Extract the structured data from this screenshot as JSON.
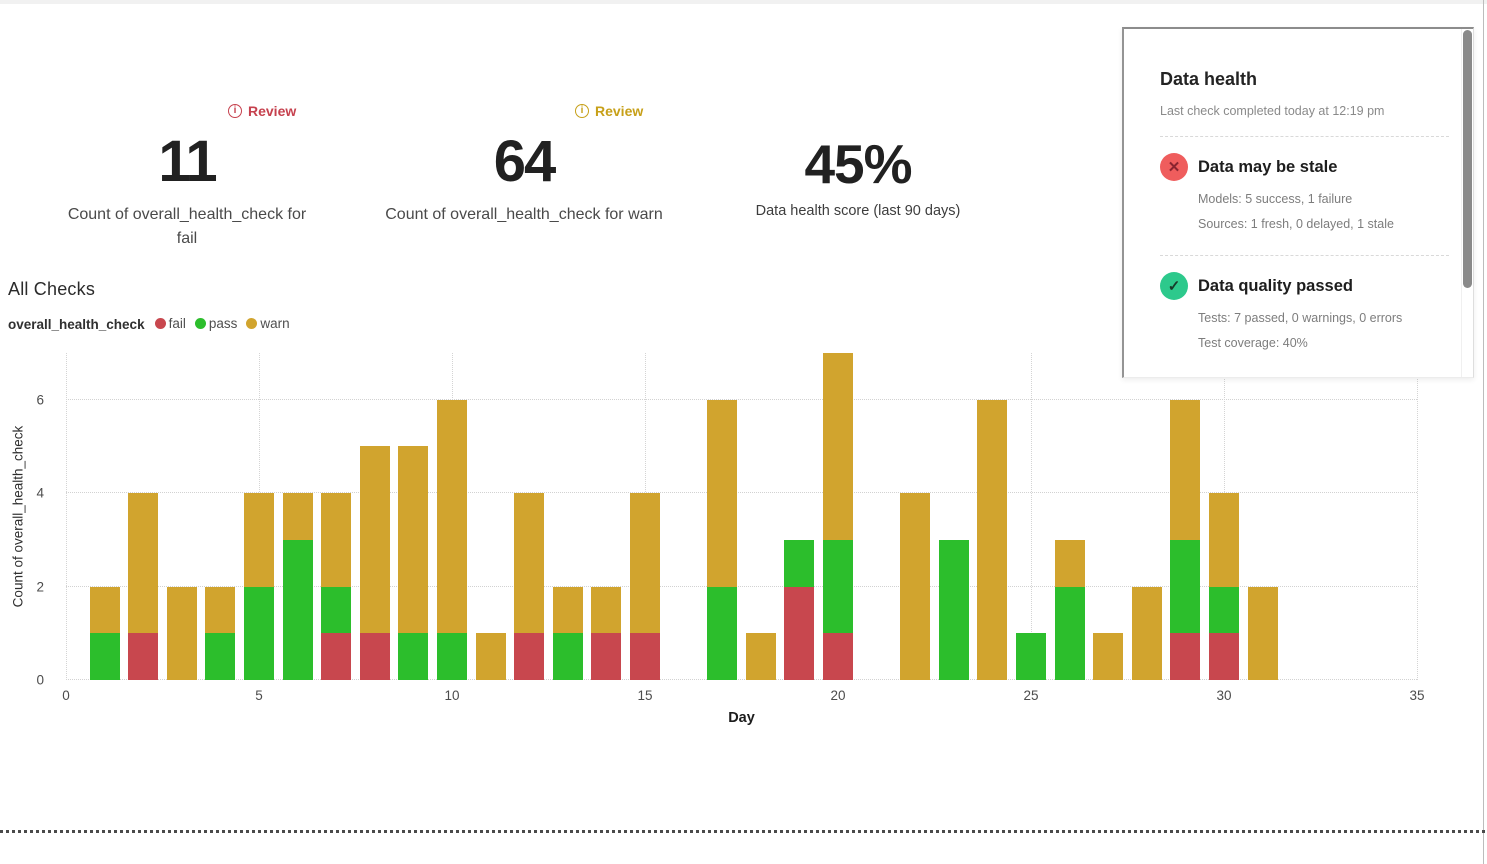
{
  "metrics": {
    "fail": {
      "badge": "Review",
      "badge_color": "#c6414e",
      "value": "11",
      "label": "Count of overall_health_check for fail"
    },
    "warn": {
      "badge": "Review",
      "badge_color": "#c7a019",
      "value": "64",
      "label": "Count of overall_health_check for warn"
    },
    "score": {
      "value": "45%",
      "label": "Data health score (last 90 days)"
    }
  },
  "health_panel": {
    "title": "Data health",
    "subtitle": "Last check completed today at 12:19 pm",
    "sections": [
      {
        "status": "fail",
        "icon": "x-circle-icon",
        "icon_color": "#ef5d5d",
        "glyph": "✕",
        "glyph_color": "#8a2430",
        "title": "Data may be stale",
        "details": [
          "Models: 5 success, 1 failure",
          "Sources: 1 fresh, 0 delayed, 1 stale"
        ]
      },
      {
        "status": "pass",
        "icon": "check-circle-icon",
        "icon_color": "#2dc98c",
        "glyph": "✓",
        "glyph_color": "#173b2a",
        "title": "Data quality passed",
        "details": [
          "Tests: 7 passed, 0 warnings, 0 errors",
          "Test coverage: 40%"
        ]
      }
    ]
  },
  "chart_data": {
    "type": "stacked_bar",
    "title": "All Checks",
    "legend_title": "overall_health_check",
    "xlabel": "Day",
    "ylabel": "Count of overall_health_check",
    "xlim": [
      0,
      35
    ],
    "ylim": [
      0,
      7
    ],
    "xticks": [
      0,
      5,
      10,
      15,
      20,
      25,
      30,
      35
    ],
    "yticks": [
      0,
      2,
      4,
      6
    ],
    "grid": "dotted",
    "legend_position": "top-left",
    "series_order": [
      "fail",
      "pass",
      "warn"
    ],
    "series_colors": {
      "fail": "#c8474e",
      "pass": "#2cbe2c",
      "warn": "#d1a42e"
    },
    "bars": [
      {
        "day": 1,
        "fail": 0,
        "pass": 1,
        "warn": 1
      },
      {
        "day": 2,
        "fail": 1,
        "pass": 0,
        "warn": 3
      },
      {
        "day": 3,
        "fail": 0,
        "pass": 0,
        "warn": 2
      },
      {
        "day": 4,
        "fail": 0,
        "pass": 1,
        "warn": 1
      },
      {
        "day": 5,
        "fail": 0,
        "pass": 2,
        "warn": 2
      },
      {
        "day": 6,
        "fail": 0,
        "pass": 3,
        "warn": 1
      },
      {
        "day": 7,
        "fail": 1,
        "pass": 1,
        "warn": 2
      },
      {
        "day": 8,
        "fail": 1,
        "pass": 0,
        "warn": 4
      },
      {
        "day": 9,
        "fail": 0,
        "pass": 1,
        "warn": 4
      },
      {
        "day": 10,
        "fail": 0,
        "pass": 1,
        "warn": 5
      },
      {
        "day": 11,
        "fail": 0,
        "pass": 0,
        "warn": 1
      },
      {
        "day": 12,
        "fail": 1,
        "pass": 0,
        "warn": 3
      },
      {
        "day": 13,
        "fail": 0,
        "pass": 1,
        "warn": 1
      },
      {
        "day": 14,
        "fail": 1,
        "pass": 0,
        "warn": 1
      },
      {
        "day": 15,
        "fail": 1,
        "pass": 0,
        "warn": 3
      },
      {
        "day": 17,
        "fail": 0,
        "pass": 2,
        "warn": 4
      },
      {
        "day": 18,
        "fail": 0,
        "pass": 0,
        "warn": 1
      },
      {
        "day": 19,
        "fail": 2,
        "pass": 1,
        "warn": 0
      },
      {
        "day": 20,
        "fail": 1,
        "pass": 2,
        "warn": 4
      },
      {
        "day": 22,
        "fail": 0,
        "pass": 0,
        "warn": 4
      },
      {
        "day": 23,
        "fail": 0,
        "pass": 3,
        "warn": 0
      },
      {
        "day": 24,
        "fail": 0,
        "pass": 0,
        "warn": 6
      },
      {
        "day": 25,
        "fail": 0,
        "pass": 1,
        "warn": 0
      },
      {
        "day": 26,
        "fail": 0,
        "pass": 2,
        "warn": 1
      },
      {
        "day": 27,
        "fail": 0,
        "pass": 0,
        "warn": 1
      },
      {
        "day": 28,
        "fail": 0,
        "pass": 0,
        "warn": 2
      },
      {
        "day": 29,
        "fail": 1,
        "pass": 2,
        "warn": 3
      },
      {
        "day": 30,
        "fail": 1,
        "pass": 1,
        "warn": 2
      },
      {
        "day": 31,
        "fail": 0,
        "pass": 0,
        "warn": 2
      }
    ]
  }
}
